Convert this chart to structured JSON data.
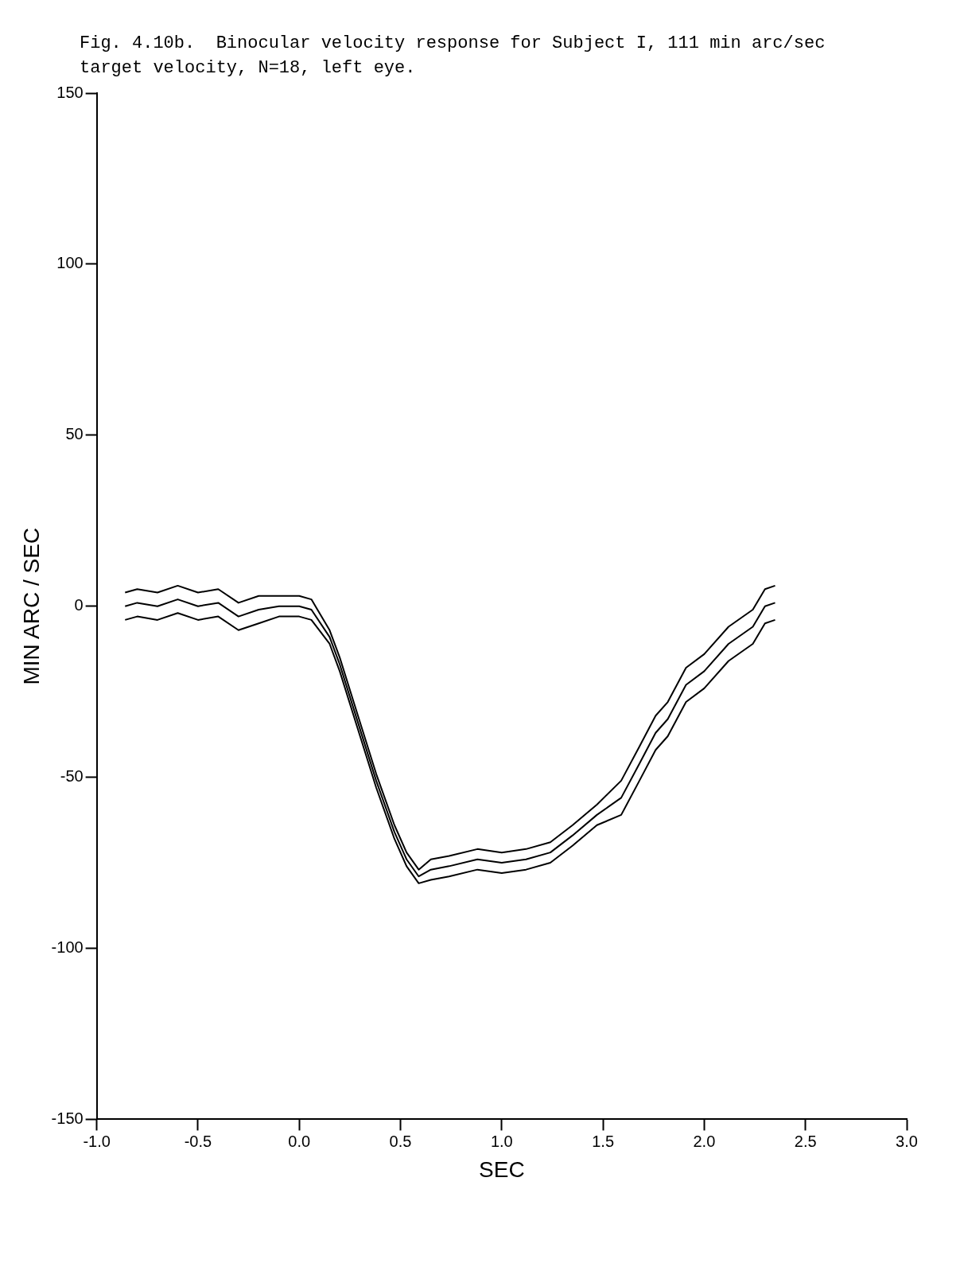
{
  "chart_data": {
    "type": "line",
    "title": "Fig. 4.10b.  Binocular velocity response for Subject I, 111 min arc/sec target velocity, N=18, left eye.",
    "xlabel": "SEC",
    "ylabel": "MIN ARC / SEC",
    "x": [
      -0.86,
      -0.8,
      -0.7,
      -0.6,
      -0.5,
      -0.4,
      -0.3,
      -0.2,
      -0.1,
      0,
      0.06,
      0.15,
      0.2,
      0.29,
      0.38,
      0.47,
      0.53,
      0.59,
      0.65,
      0.74,
      0.88,
      1.0,
      1.12,
      1.24,
      1.35,
      1.47,
      1.59,
      1.68,
      1.76,
      1.82,
      1.91,
      2.0,
      2.12,
      2.24,
      2.3,
      2.35
    ],
    "series": [
      {
        "color": "#000000",
        "values": [
          4,
          5,
          4,
          6,
          4,
          5,
          1,
          3,
          3,
          3,
          2,
          -7,
          -15,
          -32,
          -49,
          -64,
          -72,
          -77,
          -74,
          -73,
          -71,
          -72,
          -71,
          -69,
          -64,
          -58,
          -51,
          -41,
          -32,
          -28,
          -18,
          -14,
          -6,
          -1,
          5,
          6
        ]
      },
      {
        "color": "#000000",
        "values": [
          0,
          1,
          0,
          2,
          0,
          1,
          -3,
          -1,
          0,
          0,
          -1,
          -9,
          -17,
          -34,
          -51,
          -66,
          -74,
          -79,
          -77,
          -76,
          -74,
          -75,
          -74,
          -72,
          -67,
          -61,
          -56,
          -46,
          -37,
          -33,
          -23,
          -19,
          -11,
          -6,
          0,
          1
        ]
      },
      {
        "color": "#000000",
        "values": [
          -4,
          -3,
          -4,
          -2,
          -4,
          -3,
          -7,
          -5,
          -3,
          -3,
          -4,
          -11,
          -19,
          -36,
          -53,
          -68,
          -76,
          -81,
          -80,
          -79,
          -77,
          -78,
          -77,
          -75,
          -70,
          -64,
          -61,
          -51,
          -42,
          -38,
          -28,
          -24,
          -16,
          -11,
          -5,
          -4
        ]
      }
    ],
    "xlim": [
      -1,
      3
    ],
    "xticks": [
      {
        "value": -1,
        "label": "-1.0"
      },
      {
        "value": -0.5,
        "label": "-0.5"
      },
      {
        "value": 0,
        "label": "0.0"
      },
      {
        "value": 0.5,
        "label": "0.5"
      },
      {
        "value": 1,
        "label": "1.0"
      },
      {
        "value": 1.5,
        "label": "1.5"
      },
      {
        "value": 2,
        "label": "2.0"
      },
      {
        "value": 2.5,
        "label": "2.5"
      },
      {
        "value": 3,
        "label": "3.0"
      }
    ],
    "ylim": [
      -150,
      150
    ],
    "yticks": [
      -150,
      -100,
      -50,
      0,
      50,
      100,
      150
    ],
    "grid": false,
    "legend": false,
    "marker": "none",
    "line_style": "solid"
  }
}
